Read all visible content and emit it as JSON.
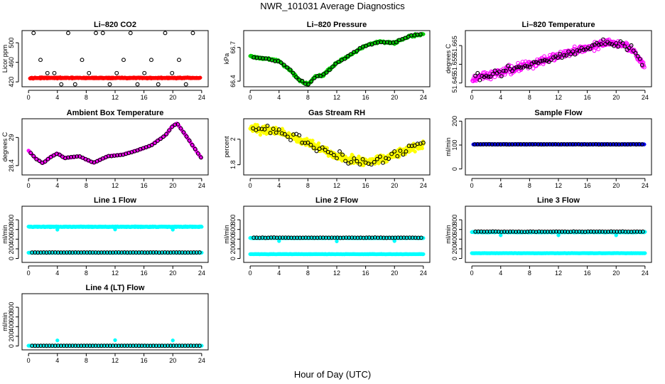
{
  "page": {
    "title": "NWR_101031  Average Diagnostics",
    "xlabel": "Hour of Day (UTC)"
  },
  "chart_data": [
    {
      "type": "scatter",
      "title": "Li–820 CO2",
      "ylabel": "Licor ppm",
      "ylim": [
        410,
        525
      ],
      "yticks": [
        420,
        460,
        500
      ],
      "xlim": [
        -0.9,
        24.9
      ],
      "xticks": [
        0,
        4,
        8,
        12,
        16,
        20,
        24
      ],
      "series": [
        {
          "name": "samples",
          "color": "#ff0000",
          "filled": true,
          "pattern": "flat",
          "start": 0.2,
          "end": 23.8,
          "step": 0.05,
          "base": 428,
          "noise": 1.5
        },
        {
          "name": "hourly",
          "color": "#000000",
          "filled": false,
          "pattern": "cyclic",
          "values": [
            520,
            465,
            438,
            438,
            415,
            520,
            415,
            465,
            438,
            520,
            520,
            415,
            438,
            465,
            520,
            415,
            438,
            465,
            415,
            520,
            438,
            465,
            415,
            520
          ],
          "xstart": 0.7,
          "xstep": 0.96
        }
      ]
    },
    {
      "type": "scatter",
      "title": "Li–820 Pressure",
      "ylabel": "kPa",
      "ylim": [
        66.35,
        66.85
      ],
      "yticks": [
        66.4,
        66.7
      ],
      "xlim": [
        -0.9,
        24.9
      ],
      "xticks": [
        0,
        4,
        8,
        12,
        16,
        20,
        24
      ],
      "series": [
        {
          "name": "samples",
          "color": "#00cc00",
          "filled": true,
          "pattern": "curve",
          "start": 0.0,
          "end": 24.0,
          "step": 0.08,
          "keys": [
            [
              0,
              66.62
            ],
            [
              2,
              66.6
            ],
            [
              4,
              66.58
            ],
            [
              5.5,
              66.5
            ],
            [
              7,
              66.4
            ],
            [
              8,
              66.37
            ],
            [
              9,
              66.44
            ],
            [
              10,
              66.45
            ],
            [
              12,
              66.56
            ],
            [
              14,
              66.64
            ],
            [
              16,
              66.72
            ],
            [
              18,
              66.75
            ],
            [
              20,
              66.74
            ],
            [
              22,
              66.8
            ],
            [
              24,
              66.82
            ]
          ],
          "noise": 0.015
        },
        {
          "name": "hourly",
          "color": "#000000",
          "filled": false,
          "pattern": "curve",
          "start": 0.5,
          "end": 23.9,
          "step": 0.42,
          "keys": [
            [
              0,
              66.62
            ],
            [
              2,
              66.6
            ],
            [
              4,
              66.58
            ],
            [
              5.5,
              66.5
            ],
            [
              7,
              66.4
            ],
            [
              8,
              66.37
            ],
            [
              9,
              66.44
            ],
            [
              10,
              66.45
            ],
            [
              12,
              66.56
            ],
            [
              14,
              66.64
            ],
            [
              16,
              66.72
            ],
            [
              18,
              66.75
            ],
            [
              20,
              66.74
            ],
            [
              22,
              66.8
            ],
            [
              24,
              66.82
            ]
          ],
          "noise": 0.01
        }
      ]
    },
    {
      "type": "scatter",
      "title": "Li–820 Temperature",
      "ylabel": "degrees C",
      "ylim": [
        51.643,
        51.673
      ],
      "yticks": [
        51.645,
        51.655,
        51.665
      ],
      "xlim": [
        -0.9,
        24.9
      ],
      "xticks": [
        0,
        4,
        8,
        12,
        16,
        20,
        24
      ],
      "series": [
        {
          "name": "samples",
          "color": "#ff00ff",
          "filled": false,
          "pattern": "curve",
          "start": 0.1,
          "end": 23.9,
          "step": 0.07,
          "keys": [
            [
              0,
              51.647
            ],
            [
              4,
              51.651
            ],
            [
              8,
              51.655
            ],
            [
              12,
              51.659
            ],
            [
              16,
              51.664
            ],
            [
              19,
              51.667
            ],
            [
              22,
              51.664
            ],
            [
              24,
              51.653
            ]
          ],
          "noise": 0.0032
        },
        {
          "name": "hourly",
          "color": "#000000",
          "filled": false,
          "pattern": "curve",
          "start": 0.5,
          "end": 23.8,
          "step": 0.3,
          "keys": [
            [
              0,
              51.647
            ],
            [
              4,
              51.651
            ],
            [
              8,
              51.655
            ],
            [
              12,
              51.659
            ],
            [
              16,
              51.664
            ],
            [
              19,
              51.667
            ],
            [
              22,
              51.664
            ],
            [
              24,
              51.653
            ]
          ],
          "noise": 0.0028
        }
      ]
    },
    {
      "type": "scatter",
      "title": "Ambient Box Temperature",
      "ylabel": "degrees C",
      "ylim": [
        28.2,
        29.4
      ],
      "yticks": [
        28.4,
        29.0
      ],
      "xlim": [
        -0.9,
        24.9
      ],
      "xticks": [
        0,
        4,
        8,
        12,
        16,
        20,
        24
      ],
      "series": [
        {
          "name": "samples",
          "color": "#ff00ff",
          "filled": true,
          "pattern": "curve",
          "start": 0.0,
          "end": 24.0,
          "step": 0.07,
          "keys": [
            [
              0,
              28.72
            ],
            [
              1,
              28.55
            ],
            [
              2,
              28.45
            ],
            [
              3,
              28.58
            ],
            [
              4,
              28.66
            ],
            [
              5,
              28.56
            ],
            [
              7,
              28.6
            ],
            [
              9,
              28.46
            ],
            [
              11,
              28.6
            ],
            [
              13,
              28.63
            ],
            [
              15,
              28.72
            ],
            [
              17,
              28.83
            ],
            [
              19,
              29.05
            ],
            [
              20,
              29.25
            ],
            [
              20.6,
              29.3
            ],
            [
              22,
              29.0
            ],
            [
              23.3,
              28.7
            ],
            [
              24,
              28.55
            ]
          ],
          "noise": 0.012
        },
        {
          "name": "hourly",
          "color": "#000000",
          "filled": false,
          "pattern": "curve",
          "start": 0.3,
          "end": 24.0,
          "step": 0.4,
          "keys": [
            [
              0,
              28.72
            ],
            [
              1,
              28.55
            ],
            [
              2,
              28.45
            ],
            [
              3,
              28.58
            ],
            [
              4,
              28.66
            ],
            [
              5,
              28.56
            ],
            [
              7,
              28.6
            ],
            [
              9,
              28.46
            ],
            [
              11,
              28.6
            ],
            [
              13,
              28.63
            ],
            [
              15,
              28.72
            ],
            [
              17,
              28.83
            ],
            [
              19,
              29.05
            ],
            [
              20,
              29.25
            ],
            [
              20.6,
              29.3
            ],
            [
              22,
              29.0
            ],
            [
              23.3,
              28.7
            ],
            [
              24,
              28.55
            ]
          ],
          "noise": 0.008
        }
      ]
    },
    {
      "type": "scatter",
      "title": "Gas Stream RH",
      "ylabel": "percent",
      "ylim": [
        1.72,
        2.16
      ],
      "yticks": [
        1.8,
        2.0
      ],
      "xlim": [
        -0.9,
        24.9
      ],
      "xticks": [
        0,
        4,
        8,
        12,
        16,
        20,
        24
      ],
      "series": [
        {
          "name": "samples",
          "color": "#ffff00",
          "filled": true,
          "pattern": "curve",
          "start": 0.0,
          "end": 24.0,
          "step": 0.05,
          "keys": [
            [
              0,
              2.08
            ],
            [
              4,
              2.06
            ],
            [
              8,
              1.97
            ],
            [
              12,
              1.87
            ],
            [
              16,
              1.82
            ],
            [
              18,
              1.84
            ],
            [
              21,
              1.9
            ],
            [
              24,
              1.96
            ]
          ],
          "noise": 0.045
        },
        {
          "name": "hourly",
          "color": "#000000",
          "filled": false,
          "pattern": "curve",
          "start": 0.4,
          "end": 24.0,
          "step": 0.4,
          "keys": [
            [
              0,
              2.08
            ],
            [
              4,
              2.06
            ],
            [
              8,
              1.97
            ],
            [
              12,
              1.87
            ],
            [
              16,
              1.82
            ],
            [
              18,
              1.84
            ],
            [
              21,
              1.9
            ],
            [
              24,
              1.96
            ]
          ],
          "noise": 0.055
        }
      ]
    },
    {
      "type": "scatter",
      "title": "Sample Flow",
      "ylabel": "ml/min",
      "ylim": [
        -25,
        210
      ],
      "yticks": [
        0,
        100,
        200
      ],
      "xlim": [
        -0.9,
        24.9
      ],
      "xticks": [
        0,
        4,
        8,
        12,
        16,
        20,
        24
      ],
      "series": [
        {
          "name": "samples",
          "color": "#0000ff",
          "filled": true,
          "pattern": "flat",
          "start": 0.2,
          "end": 23.9,
          "step": 0.05,
          "base": 103,
          "noise": 1.2
        },
        {
          "name": "hourly",
          "color": "#000000",
          "filled": false,
          "pattern": "flat",
          "start": 0.4,
          "end": 23.9,
          "step": 0.4,
          "base": 103,
          "noise": 0.8
        }
      ]
    },
    {
      "type": "scatter",
      "title": "Line 1 Flow",
      "ylabel": "ml/min",
      "ylim": [
        -80,
        1080
      ],
      "yticks": [
        0,
        200,
        400,
        600,
        800
      ],
      "xlim": [
        -0.9,
        24.9
      ],
      "xticks": [
        0,
        4,
        8,
        12,
        16,
        20,
        24
      ],
      "series": [
        {
          "name": "line-a",
          "color": "#00ffff",
          "filled": true,
          "pattern": "flat",
          "start": 0.0,
          "end": 24.0,
          "step": 0.05,
          "base": 655,
          "noise": 10,
          "outliers": [
            [
              4,
              595
            ],
            [
              12,
              600
            ],
            [
              20,
              595
            ]
          ]
        },
        {
          "name": "line-b",
          "color": "#00ffff",
          "filled": true,
          "pattern": "flat",
          "start": 0.0,
          "end": 24.0,
          "step": 0.1,
          "base": 120,
          "noise": 4
        },
        {
          "name": "hourly",
          "color": "#000000",
          "filled": false,
          "pattern": "flat",
          "start": 0.5,
          "end": 23.9,
          "step": 0.4,
          "base": 125,
          "noise": 3
        }
      ]
    },
    {
      "type": "scatter",
      "title": "Line 2 Flow",
      "ylabel": "ml/min",
      "ylim": [
        -80,
        1080
      ],
      "yticks": [
        0,
        200,
        400,
        600,
        800
      ],
      "xlim": [
        -0.9,
        24.9
      ],
      "xticks": [
        0,
        4,
        8,
        12,
        16,
        20,
        24
      ],
      "series": [
        {
          "name": "line-a",
          "color": "#00ffff",
          "filled": true,
          "pattern": "flat",
          "start": 0.0,
          "end": 24.0,
          "step": 0.05,
          "base": 425,
          "noise": 8,
          "outliers": [
            [
              4,
              360
            ],
            [
              12,
              355
            ],
            [
              20,
              360
            ]
          ]
        },
        {
          "name": "line-b",
          "color": "#00ffff",
          "filled": true,
          "pattern": "flat",
          "start": 0.0,
          "end": 24.0,
          "step": 0.1,
          "base": 90,
          "noise": 4
        },
        {
          "name": "hourly",
          "color": "#000000",
          "filled": false,
          "pattern": "flat",
          "start": 0.5,
          "end": 23.9,
          "step": 0.4,
          "base": 430,
          "noise": 5
        }
      ]
    },
    {
      "type": "scatter",
      "title": "Line 3 Flow",
      "ylabel": "ml/min",
      "ylim": [
        -80,
        1080
      ],
      "yticks": [
        0,
        200,
        400,
        600,
        800
      ],
      "xlim": [
        -0.9,
        24.9
      ],
      "xticks": [
        0,
        4,
        8,
        12,
        16,
        20,
        24
      ],
      "series": [
        {
          "name": "line-a",
          "color": "#00ffff",
          "filled": true,
          "pattern": "flat",
          "start": 0.0,
          "end": 24.0,
          "step": 0.05,
          "base": 545,
          "noise": 10,
          "outliers": [
            [
              4,
              480
            ],
            [
              12,
              480
            ],
            [
              20,
              480
            ]
          ]
        },
        {
          "name": "line-b",
          "color": "#00ffff",
          "filled": true,
          "pattern": "flat",
          "start": 0.0,
          "end": 24.0,
          "step": 0.1,
          "base": 110,
          "noise": 4
        },
        {
          "name": "hourly",
          "color": "#000000",
          "filled": false,
          "pattern": "flat",
          "start": 0.5,
          "end": 23.9,
          "step": 0.4,
          "base": 555,
          "noise": 6
        }
      ]
    },
    {
      "type": "scatter",
      "title": "Line 4 (LT) Flow",
      "ylabel": "ml/min",
      "ylim": [
        -80,
        1080
      ],
      "yticks": [
        0,
        200,
        400,
        600,
        800
      ],
      "xlim": [
        -0.9,
        24.9
      ],
      "xticks": [
        0,
        4,
        8,
        12,
        16,
        20,
        24
      ],
      "series": [
        {
          "name": "line-a",
          "color": "#00ffff",
          "filled": true,
          "pattern": "flat",
          "start": 0.0,
          "end": 24.0,
          "step": 0.1,
          "base": 5,
          "noise": 3,
          "outliers": [
            [
              4,
              115
            ],
            [
              12,
              120
            ],
            [
              20,
              115
            ]
          ]
        },
        {
          "name": "hourly",
          "color": "#000000",
          "filled": false,
          "pattern": "flat",
          "start": 0.5,
          "end": 23.9,
          "step": 0.4,
          "base": 5,
          "noise": 2
        }
      ]
    }
  ]
}
